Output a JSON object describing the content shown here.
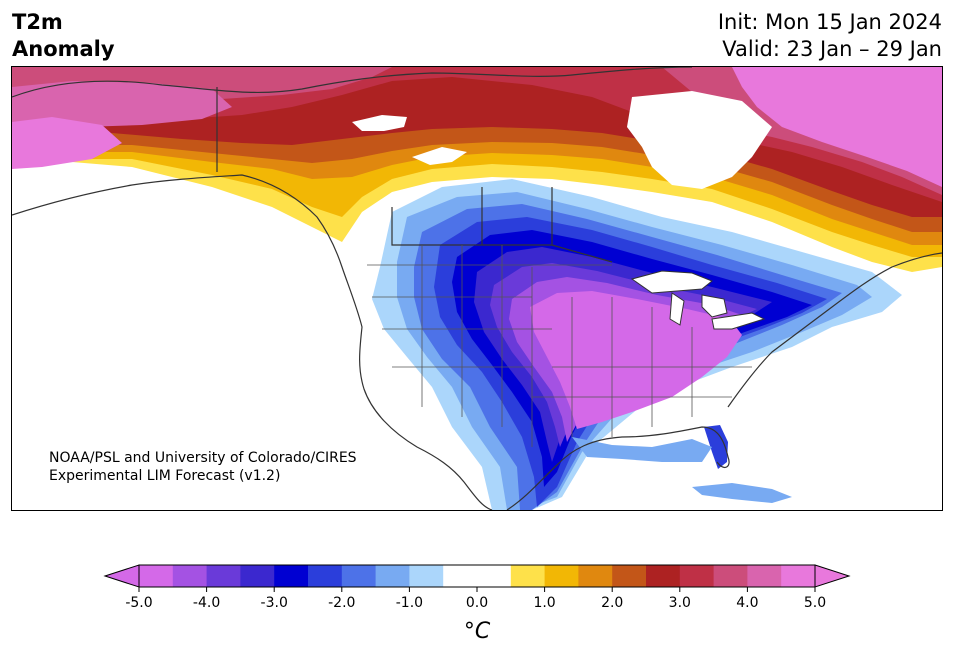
{
  "header": {
    "title_line1": "T2m",
    "title_line2": "Anomaly",
    "init": "Init: Mon 15 Jan 2024",
    "valid": "Valid: 23 Jan – 29 Jan"
  },
  "credit": {
    "line1": "NOAA/PSL and University of Colorado/CIRES",
    "line2": "Experimental LIM Forecast (v1.2)"
  },
  "colorbar": {
    "unit": "°C",
    "ticks": [
      "-5.0",
      "-4.0",
      "-3.0",
      "-2.0",
      "-1.0",
      "0.0",
      "1.0",
      "2.0",
      "3.0",
      "4.0",
      "5.0"
    ],
    "colors": [
      "#d469e8",
      "#a452e3",
      "#6a3ad9",
      "#3b28cf",
      "#0000d2",
      "#2b3edb",
      "#4d72e8",
      "#78aaf2",
      "#abd6fb",
      "#ffffff",
      "#ffffff",
      "#fee14a",
      "#f2b705",
      "#e0880f",
      "#c35618",
      "#ad2222",
      "#bf3046",
      "#cc4d7b",
      "#d964ae",
      "#e878dc"
    ],
    "under_color": "#d469e8",
    "over_color": "#e878dc"
  }
}
